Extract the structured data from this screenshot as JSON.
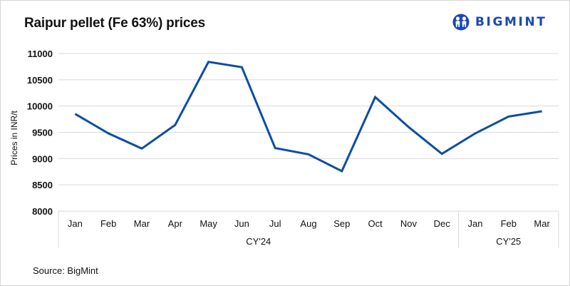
{
  "header": {
    "title": "Raipur pellet (Fe 63%) prices",
    "logo_text": "BIGMINT",
    "logo_icon": "bigmint-people-icon"
  },
  "footer": {
    "source": "Source: BigMint"
  },
  "colors": {
    "line": "#0b4ea2",
    "logo": "#1a47b8",
    "grid": "#d9d9d9"
  },
  "chart_data": {
    "type": "line",
    "title": "Raipur pellet (Fe 63%) prices",
    "xlabel": "",
    "ylabel": "Prices in INR/t",
    "ylim": [
      8000,
      11000
    ],
    "yticks": [
      8000,
      8500,
      9000,
      9500,
      10000,
      10500,
      11000
    ],
    "grid": true,
    "legend": "none",
    "categories": [
      "Jan",
      "Feb",
      "Mar",
      "Apr",
      "May",
      "Jun",
      "Jul",
      "Aug",
      "Sep",
      "Oct",
      "Nov",
      "Dec",
      "Jan",
      "Feb",
      "Mar"
    ],
    "groups": [
      {
        "label": "CY'24",
        "count": 12
      },
      {
        "label": "CY'25",
        "count": 3
      }
    ],
    "series": [
      {
        "name": "Raipur pellet (Fe 63%)",
        "values": [
          9850,
          9480,
          9190,
          9640,
          10840,
          10740,
          9200,
          9080,
          8760,
          10170,
          9600,
          9090,
          9480,
          9800,
          9900
        ]
      }
    ]
  }
}
